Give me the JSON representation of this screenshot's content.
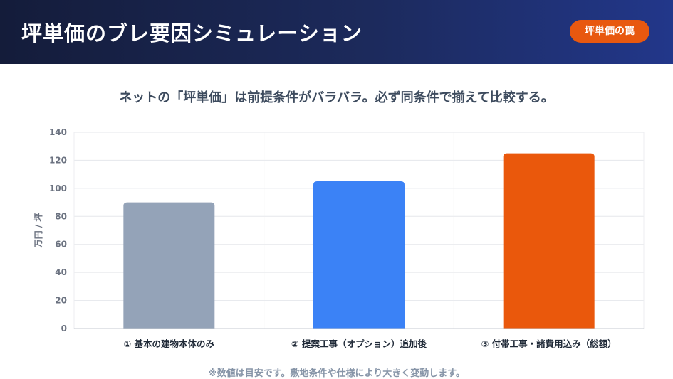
{
  "header": {
    "title": "坪単価のブレ要因シミュレーション",
    "badge": "坪単価の罠"
  },
  "subtitle": "ネットの「坪単価」は前提条件がバラバラ。必ず同条件で揃えて比較する。",
  "note": "※数値は目安です。敷地条件や仕様により大きく変動します。",
  "chart_data": {
    "type": "bar",
    "categories": [
      "① 基本の建物本体のみ",
      "② 提案工事（オプション）追加後",
      "③ 付帯工事・諸費用込み（総額）"
    ],
    "values": [
      90,
      105,
      125
    ],
    "colors": [
      "#94a3b8",
      "#3b82f6",
      "#ea580c"
    ],
    "xlabel": "",
    "ylabel": "万円 / 坪",
    "ylim": [
      0,
      140
    ],
    "yticks": [
      0,
      20,
      40,
      60,
      80,
      100,
      120,
      140
    ],
    "grid": true
  }
}
